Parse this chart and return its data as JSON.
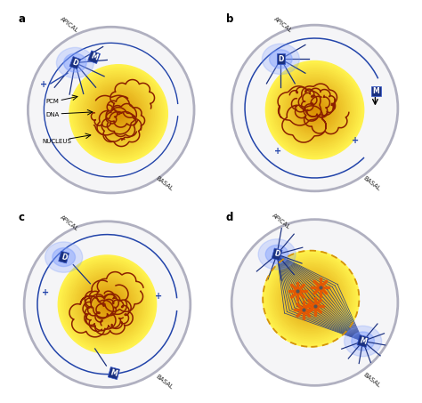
{
  "bg_color": "#ffffff",
  "cell_fill": "#f5f5f7",
  "cell_edge": "#b0b0c0",
  "nucleus_colors": [
    "#fffacc",
    "#ffe066",
    "#ffc200",
    "#e8a000",
    "#c87000"
  ],
  "dna_color": "#8B2000",
  "blue_dark": "#1a3080",
  "blue_mid": "#2244aa",
  "blue_glow": "#7799ff",
  "label_color": "#222222",
  "orange_chrom": "#e85500",
  "panel_labels": [
    "a",
    "b",
    "c",
    "d"
  ]
}
